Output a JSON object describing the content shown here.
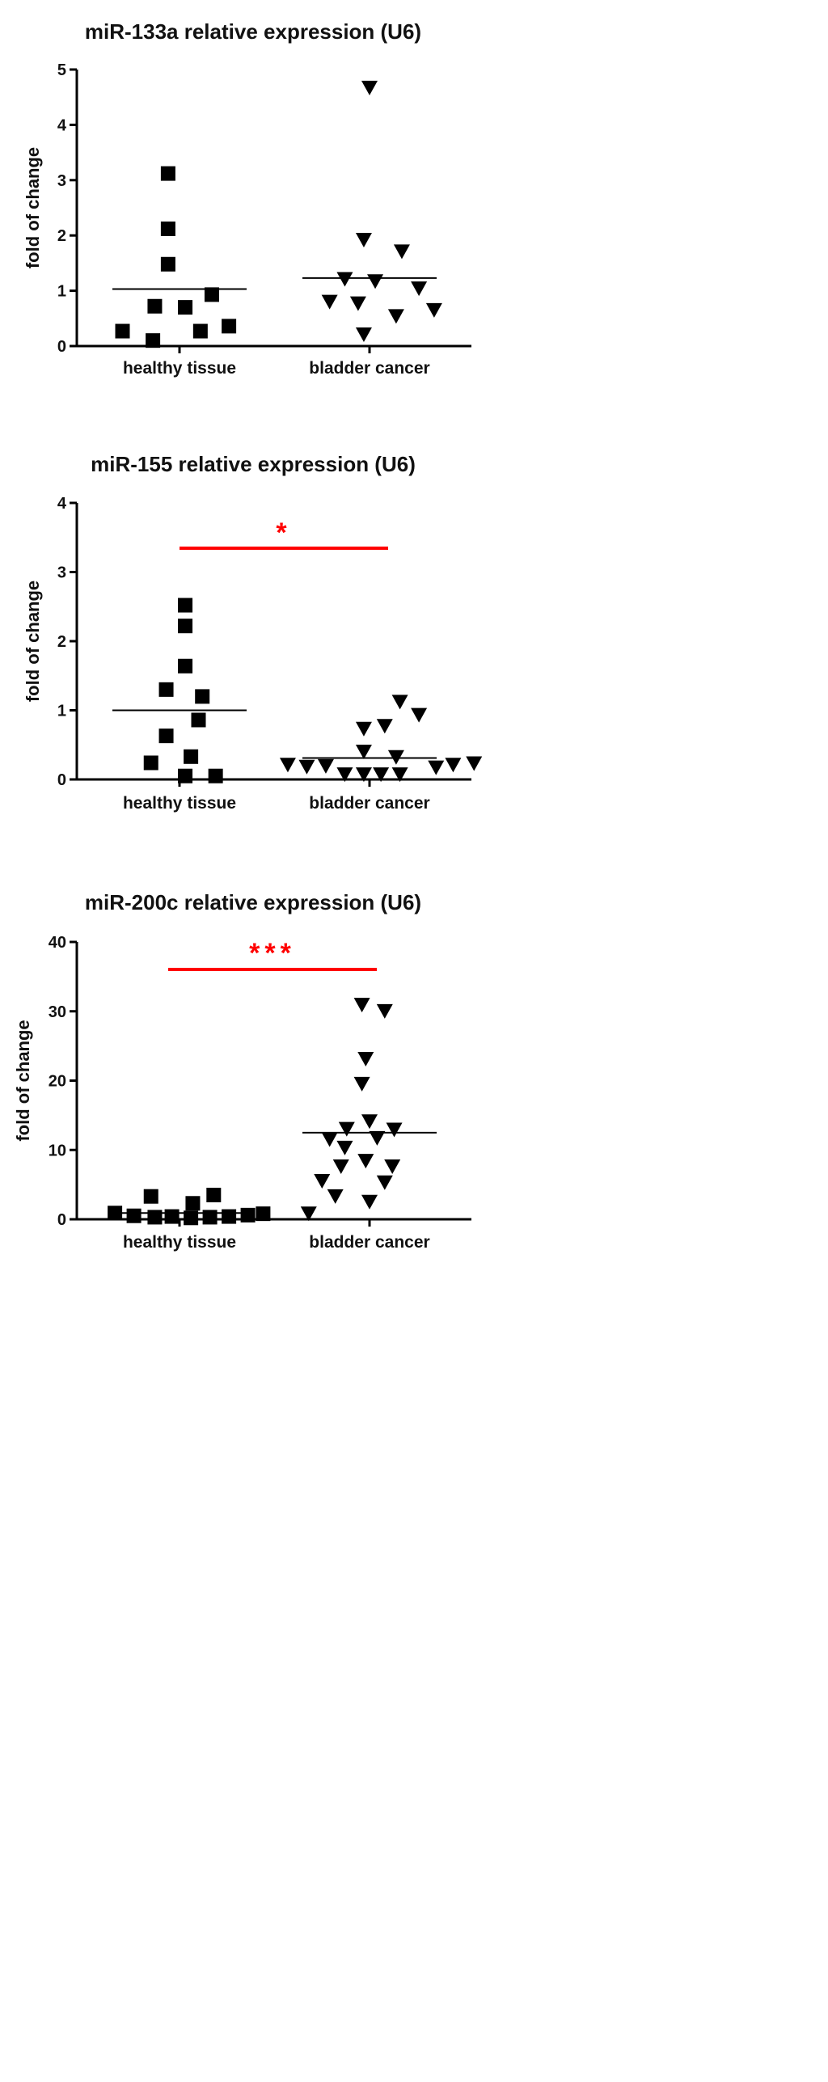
{
  "chart_data": [
    {
      "type": "scatter",
      "title": "miR-133a relative expression (U6)",
      "ylabel": "fold of change",
      "xlabel": "",
      "ylim": [
        0,
        5
      ],
      "yticks": [
        "0",
        "1",
        "2",
        "3",
        "4",
        "5"
      ],
      "categories": [
        "healthy tissue",
        "bladder cancer"
      ],
      "significance": "",
      "series": [
        {
          "marker": "square",
          "points": [
            {
              "x": -0.06,
              "y": 3.12
            },
            {
              "x": -0.06,
              "y": 2.12
            },
            {
              "x": -0.06,
              "y": 1.48
            },
            {
              "x": 0.17,
              "y": 0.93
            },
            {
              "x": -0.13,
              "y": 0.72
            },
            {
              "x": 0.03,
              "y": 0.7
            },
            {
              "x": 0.26,
              "y": 0.36
            },
            {
              "x": -0.3,
              "y": 0.27
            },
            {
              "x": 0.11,
              "y": 0.27
            },
            {
              "x": -0.14,
              "y": 0.1
            }
          ],
          "mean": 1.03
        },
        {
          "marker": "triangle-down",
          "points": [
            {
              "x": 1.0,
              "y": 4.68
            },
            {
              "x": 0.97,
              "y": 1.93
            },
            {
              "x": 1.17,
              "y": 1.72
            },
            {
              "x": 0.87,
              "y": 1.22
            },
            {
              "x": 1.03,
              "y": 1.18
            },
            {
              "x": 1.26,
              "y": 1.05
            },
            {
              "x": 0.79,
              "y": 0.81
            },
            {
              "x": 0.94,
              "y": 0.78
            },
            {
              "x": 1.34,
              "y": 0.66
            },
            {
              "x": 1.14,
              "y": 0.55
            },
            {
              "x": 0.97,
              "y": 0.22
            }
          ],
          "mean": 1.23
        }
      ]
    },
    {
      "type": "scatter",
      "title": "miR-155 relative expression (U6)",
      "ylabel": "fold of change",
      "xlabel": "",
      "ylim": [
        0,
        4
      ],
      "yticks": [
        "0",
        "1",
        "2",
        "3",
        "4"
      ],
      "categories": [
        "healthy tissue",
        "bladder cancer"
      ],
      "significance": "*",
      "series": [
        {
          "marker": "square",
          "points": [
            {
              "x": 0.03,
              "y": 2.52
            },
            {
              "x": 0.03,
              "y": 2.22
            },
            {
              "x": 0.03,
              "y": 1.64
            },
            {
              "x": -0.07,
              "y": 1.3
            },
            {
              "x": 0.12,
              "y": 1.2
            },
            {
              "x": 0.1,
              "y": 0.86
            },
            {
              "x": -0.07,
              "y": 0.63
            },
            {
              "x": 0.06,
              "y": 0.33
            },
            {
              "x": -0.15,
              "y": 0.24
            },
            {
              "x": 0.03,
              "y": 0.05
            },
            {
              "x": 0.19,
              "y": 0.05
            }
          ],
          "mean": 1.0
        },
        {
          "marker": "triangle-down",
          "points": [
            {
              "x": 1.16,
              "y": 1.13
            },
            {
              "x": 1.26,
              "y": 0.94
            },
            {
              "x": 0.97,
              "y": 0.74
            },
            {
              "x": 1.08,
              "y": 0.78
            },
            {
              "x": 0.97,
              "y": 0.41
            },
            {
              "x": 1.14,
              "y": 0.33
            },
            {
              "x": 0.57,
              "y": 0.22
            },
            {
              "x": 0.67,
              "y": 0.19
            },
            {
              "x": 0.77,
              "y": 0.2
            },
            {
              "x": 1.44,
              "y": 0.22
            },
            {
              "x": 1.55,
              "y": 0.24
            },
            {
              "x": 0.87,
              "y": 0.08
            },
            {
              "x": 0.97,
              "y": 0.08
            },
            {
              "x": 1.06,
              "y": 0.08
            },
            {
              "x": 1.16,
              "y": 0.08
            },
            {
              "x": 1.35,
              "y": 0.18
            }
          ],
          "mean": 0.31
        }
      ]
    },
    {
      "type": "scatter",
      "title": "miR-200c relative expression (U6)",
      "ylabel": "fold of change",
      "xlabel": "",
      "ylim": [
        0,
        40
      ],
      "yticks": [
        "0",
        "10",
        "20",
        "30",
        "40"
      ],
      "categories": [
        "healthy tissue",
        "bladder cancer"
      ],
      "significance": "***",
      "series": [
        {
          "marker": "square",
          "points": [
            {
              "x": -0.15,
              "y": 3.3
            },
            {
              "x": 0.18,
              "y": 3.5
            },
            {
              "x": 0.07,
              "y": 2.3
            },
            {
              "x": -0.34,
              "y": 0.9
            },
            {
              "x": -0.24,
              "y": 0.5
            },
            {
              "x": -0.13,
              "y": 0.3
            },
            {
              "x": -0.04,
              "y": 0.4
            },
            {
              "x": 0.06,
              "y": 0.2
            },
            {
              "x": 0.16,
              "y": 0.3
            },
            {
              "x": 0.26,
              "y": 0.4
            },
            {
              "x": 0.36,
              "y": 0.6
            },
            {
              "x": 0.44,
              "y": 0.8
            }
          ],
          "mean": 0.9
        },
        {
          "marker": "triangle-down",
          "points": [
            {
              "x": 0.96,
              "y": 31.0
            },
            {
              "x": 1.08,
              "y": 30.1
            },
            {
              "x": 0.98,
              "y": 23.2
            },
            {
              "x": 0.96,
              "y": 19.6
            },
            {
              "x": 1.0,
              "y": 14.2
            },
            {
              "x": 0.88,
              "y": 13.1
            },
            {
              "x": 1.13,
              "y": 13.0
            },
            {
              "x": 1.04,
              "y": 11.8
            },
            {
              "x": 0.79,
              "y": 11.6
            },
            {
              "x": 0.87,
              "y": 10.4
            },
            {
              "x": 0.98,
              "y": 8.5
            },
            {
              "x": 0.85,
              "y": 7.7
            },
            {
              "x": 1.12,
              "y": 7.7
            },
            {
              "x": 0.75,
              "y": 5.6
            },
            {
              "x": 1.08,
              "y": 5.4
            },
            {
              "x": 0.82,
              "y": 3.4
            },
            {
              "x": 1.0,
              "y": 2.6
            },
            {
              "x": 0.68,
              "y": 0.9
            }
          ],
          "mean": 12.5
        }
      ]
    }
  ]
}
